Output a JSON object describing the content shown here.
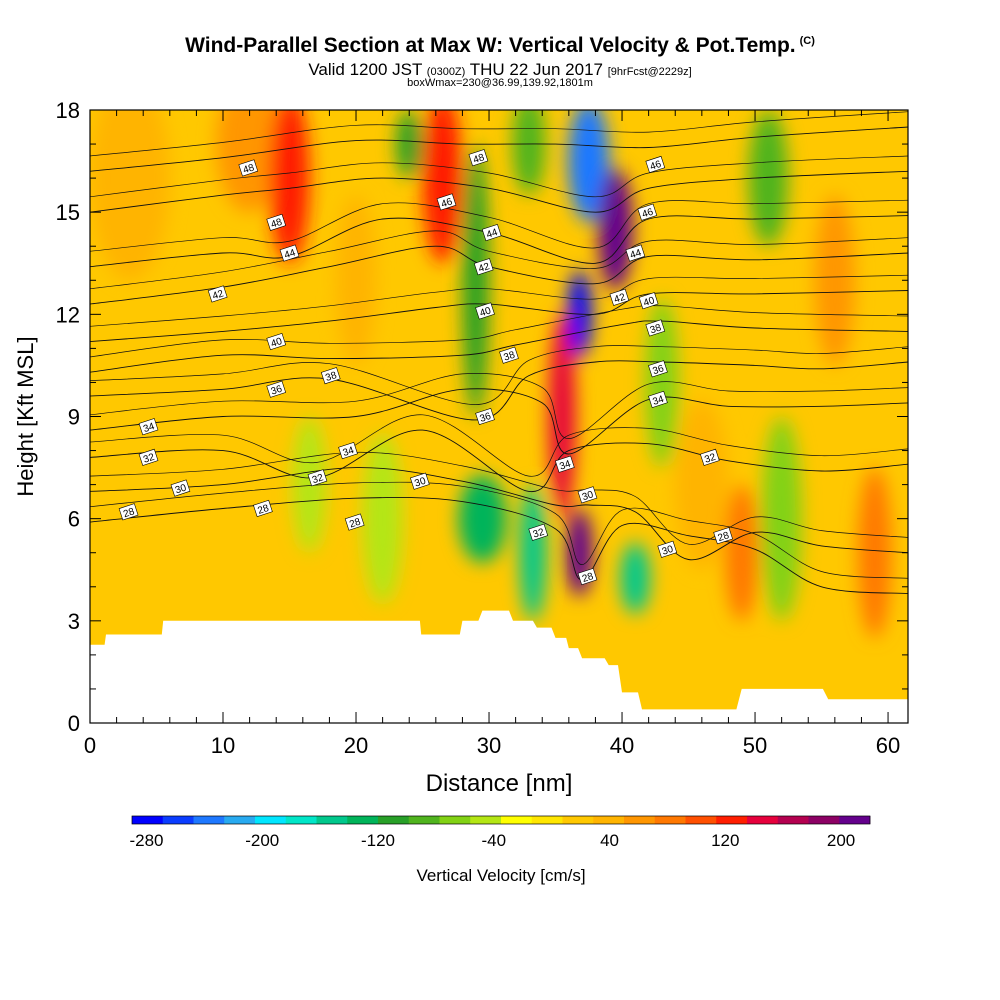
{
  "header": {
    "title": "Wind-Parallel Section at Max W: Vertical Velocity & Pot.Temp.",
    "copyright": "(C)",
    "valid_prefix": "Valid 1200 JST",
    "valid_utc": "(0300Z)",
    "valid_date": "THU 22 Jun 2017",
    "forecast_info": "[9hrFcst@2229z]",
    "box_info": "boxWmax=230@36.99,139.92,1801m"
  },
  "chart_data": {
    "type": "heatmap",
    "title": "Wind-Parallel Section at Max W: Vertical Velocity & Pot.Temp.",
    "xlabel": "Distance [nm]",
    "ylabel": "Height [Kft MSL]",
    "xlim": [
      0,
      61.5
    ],
    "ylim": [
      0,
      18
    ],
    "x_ticks": [
      0,
      10,
      20,
      30,
      40,
      50,
      60
    ],
    "y_ticks": [
      0,
      3,
      6,
      9,
      12,
      15,
      18
    ],
    "grid": false,
    "colorbar": {
      "label": "Vertical Velocity [cm/s]",
      "ticks": [
        -280,
        -200,
        -120,
        -40,
        40,
        120,
        200
      ],
      "range": [
        -290,
        220
      ],
      "colors": [
        "#0000ff",
        "#0a3cff",
        "#1e78ff",
        "#28aaf0",
        "#00e6ff",
        "#00e6c8",
        "#00c88c",
        "#00b45a",
        "#28a028",
        "#50b41e",
        "#82d214",
        "#b4e614",
        "#ffff00",
        "#ffe600",
        "#ffc800",
        "#ffb400",
        "#ff9600",
        "#ff7800",
        "#ff5000",
        "#ff1e00",
        "#e6003c",
        "#b40050",
        "#8c0064",
        "#64008c"
      ]
    },
    "vertical_velocity_cells": [
      {
        "x": 36.8,
        "top_height": 13,
        "bottom_height": 11,
        "value": -280,
        "width_nm": 1.2
      },
      {
        "x": 37.5,
        "top_height": 18,
        "bottom_height": 15,
        "value": -240,
        "width_nm": 2.5
      },
      {
        "x": 39.5,
        "top_height": 16,
        "bottom_height": 13,
        "value": 200,
        "width_nm": 2.0
      },
      {
        "x": 36.8,
        "top_height": 6,
        "bottom_height": 4,
        "value": 210,
        "width_nm": 1.4
      },
      {
        "x": 29.5,
        "top_height": 7,
        "bottom_height": 5,
        "value": -140,
        "width_nm": 3.0
      },
      {
        "x": 41.0,
        "top_height": 5,
        "bottom_height": 3.5,
        "value": -150,
        "width_nm": 1.6
      }
    ],
    "ww_features": [
      {
        "x": 3,
        "height": 16,
        "width_nm": 6,
        "height_kft": 6,
        "value": 40
      },
      {
        "x": 12,
        "height": 17,
        "width_nm": 5,
        "height_kft": 4,
        "value": 60
      },
      {
        "x": 15,
        "height": 16,
        "width_nm": 3,
        "height_kft": 5,
        "value": 120
      },
      {
        "x": 16.5,
        "height": 7,
        "width_nm": 2.5,
        "height_kft": 4,
        "value": -40
      },
      {
        "x": 20,
        "height": 13,
        "width_nm": 3,
        "height_kft": 5,
        "value": 40
      },
      {
        "x": 22,
        "height": 6,
        "width_nm": 3,
        "height_kft": 5,
        "value": -50
      },
      {
        "x": 24,
        "height": 17,
        "width_nm": 2,
        "height_kft": 2,
        "value": -100
      },
      {
        "x": 26.5,
        "height": 16,
        "width_nm": 3,
        "height_kft": 5,
        "value": 120
      },
      {
        "x": 29,
        "height": 13,
        "width_nm": 2,
        "height_kft": 8,
        "value": -100
      },
      {
        "x": 33,
        "height": 17,
        "width_nm": 2.5,
        "height_kft": 3,
        "value": -80
      },
      {
        "x": 33.3,
        "height": 5,
        "width_nm": 2,
        "height_kft": 4,
        "value": -150
      },
      {
        "x": 35.5,
        "height": 9,
        "width_nm": 2,
        "height_kft": 6,
        "value": 150
      },
      {
        "x": 43,
        "height": 10,
        "width_nm": 2.5,
        "height_kft": 5,
        "value": -60
      },
      {
        "x": 46,
        "height": 7,
        "width_nm": 4,
        "height_kft": 5,
        "value": 40
      },
      {
        "x": 49,
        "height": 5,
        "width_nm": 2.5,
        "height_kft": 4,
        "value": 90
      },
      {
        "x": 51,
        "height": 16,
        "width_nm": 3,
        "height_kft": 4,
        "value": -80
      },
      {
        "x": 52,
        "height": 6,
        "width_nm": 3,
        "height_kft": 6,
        "value": -60
      },
      {
        "x": 56,
        "height": 13,
        "width_nm": 3,
        "height_kft": 5,
        "value": 50
      },
      {
        "x": 59,
        "height": 5,
        "width_nm": 2.5,
        "height_kft": 5,
        "value": 80
      }
    ],
    "terrain_profile": {
      "x": [
        0,
        1.1,
        1.2,
        5.4,
        5.5,
        24.8,
        24.9,
        27.8,
        28,
        29.2,
        29.5,
        31.5,
        31.8,
        33.3,
        33.6,
        34.7,
        35,
        35.8,
        36,
        36.7,
        37,
        38.7,
        39,
        39.7,
        40,
        41.2,
        41.5,
        45,
        45.3,
        48.6,
        49,
        51.6,
        52,
        55.1,
        55.5,
        61.5
      ],
      "height_kft": [
        2.3,
        2.3,
        2.6,
        2.6,
        3.0,
        3.0,
        2.6,
        2.6,
        3.0,
        3.0,
        3.3,
        3.3,
        3.0,
        3.0,
        2.8,
        2.8,
        2.5,
        2.5,
        2.2,
        2.2,
        1.9,
        1.9,
        1.7,
        1.7,
        0.9,
        0.9,
        0.4,
        0.4,
        0.4,
        0.4,
        1.0,
        1.0,
        1.0,
        1.0,
        0.7,
        0.7
      ]
    },
    "potential_temperature_contours": [
      {
        "level": 28,
        "y_kft_at_x": {
          "0": 5.9,
          "10": 6.3,
          "20": 6.6,
          "28": 6.5,
          "35": 5.7,
          "37": 4.2,
          "40": 5.8,
          "45": 5.5,
          "50": 5.1,
          "55": 4.0,
          "61.5": 3.8
        }
      },
      {
        "level": 30,
        "y_kft_at_x": {
          "0": 6.8,
          "10": 7.0,
          "20": 7.5,
          "28": 7.1,
          "35": 6.4,
          "37.5": 6.4,
          "41": 6.2,
          "45": 4.8,
          "50": 5.6,
          "55": 5.2,
          "61.5": 5.0
        }
      },
      {
        "level": 32,
        "y_kft_at_x": {
          "0": 7.8,
          "10": 8.0,
          "17": 7.2,
          "25": 8.6,
          "33": 6.8,
          "36": 8.0,
          "42": 8.2,
          "48": 7.7,
          "55": 7.4,
          "61.5": 7.6
        }
      },
      {
        "level": 34,
        "y_kft_at_x": {
          "0": 8.6,
          "10": 9.0,
          "20": 9.0,
          "28": 9.8,
          "34": 9.4,
          "36": 7.9,
          "42": 9.5,
          "48": 9.3,
          "55": 9.3,
          "61.5": 9.4
        }
      },
      {
        "level": 36,
        "y_kft_at_x": {
          "0": 9.6,
          "10": 9.8,
          "18": 10.1,
          "29": 8.9,
          "33": 10.2,
          "38": 10.6,
          "43": 10.6,
          "50": 10.5,
          "55": 10.4,
          "61.5": 10.6
        }
      },
      {
        "level": 38,
        "y_kft_at_x": {
          "0": 10.3,
          "10": 10.8,
          "18": 10.7,
          "28": 10.8,
          "32": 11.1,
          "40": 11.7,
          "43": 11.8,
          "50": 11.6,
          "61.5": 11.5
        }
      },
      {
        "level": 40,
        "y_kft_at_x": {
          "0": 11.2,
          "10": 11.5,
          "18": 11.8,
          "26": 12.2,
          "30": 12.3,
          "38": 12.0,
          "42": 12.6,
          "50": 12.6,
          "61.5": 12.7
        }
      },
      {
        "level": 42,
        "y_kft_at_x": {
          "0": 12.3,
          "10": 12.8,
          "18": 13.4,
          "26": 14.0,
          "30": 13.4,
          "38": 12.9,
          "42": 13.7,
          "50": 13.6,
          "61.5": 13.8
        }
      },
      {
        "level": 44,
        "y_kft_at_x": {
          "0": 13.4,
          "10": 13.8,
          "15": 13.7,
          "22": 14.8,
          "30": 14.4,
          "38": 13.5,
          "42": 14.8,
          "50": 14.8,
          "61.5": 14.9
        }
      },
      {
        "level": 46,
        "y_kft_at_x": {
          "0": 15.0,
          "10": 15.5,
          "15": 15.7,
          "22": 16.0,
          "30": 15.7,
          "38": 15.0,
          "42": 15.7,
          "50": 16.0,
          "61.5": 16.2
        }
      },
      {
        "level": 48,
        "y_kft_at_x": {
          "0": 16.2,
          "10": 16.6,
          "20": 17.1,
          "28": 17.0,
          "35": 17.0,
          "42": 16.9,
          "50": 17.2,
          "61.5": 17.5
        }
      }
    ],
    "contour_labels": [
      {
        "text": "48",
        "x": 11.9,
        "y": 16.3
      },
      {
        "text": "48",
        "x": 14.0,
        "y": 14.7
      },
      {
        "text": "44",
        "x": 15.0,
        "y": 13.8
      },
      {
        "text": "42",
        "x": 9.6,
        "y": 12.6
      },
      {
        "text": "40",
        "x": 14.0,
        "y": 11.2
      },
      {
        "text": "38",
        "x": 18.1,
        "y": 10.2
      },
      {
        "text": "36",
        "x": 14.0,
        "y": 9.8
      },
      {
        "text": "34",
        "x": 4.4,
        "y": 8.7
      },
      {
        "text": "34",
        "x": 19.4,
        "y": 8.0
      },
      {
        "text": "32",
        "x": 4.4,
        "y": 7.8
      },
      {
        "text": "32",
        "x": 17.1,
        "y": 7.2
      },
      {
        "text": "30",
        "x": 6.8,
        "y": 6.9
      },
      {
        "text": "30",
        "x": 24.8,
        "y": 7.1
      },
      {
        "text": "28",
        "x": 2.9,
        "y": 6.2
      },
      {
        "text": "28",
        "x": 13.0,
        "y": 6.3
      },
      {
        "text": "28",
        "x": 19.9,
        "y": 5.9
      },
      {
        "text": "48",
        "x": 29.2,
        "y": 16.6
      },
      {
        "text": "46",
        "x": 26.8,
        "y": 15.3
      },
      {
        "text": "44",
        "x": 30.2,
        "y": 14.4
      },
      {
        "text": "42",
        "x": 29.6,
        "y": 13.4
      },
      {
        "text": "40",
        "x": 29.7,
        "y": 12.1
      },
      {
        "text": "38",
        "x": 31.5,
        "y": 10.8
      },
      {
        "text": "36",
        "x": 29.7,
        "y": 9.0
      },
      {
        "text": "34",
        "x": 35.7,
        "y": 7.6
      },
      {
        "text": "32",
        "x": 33.7,
        "y": 5.6
      },
      {
        "text": "30",
        "x": 37.4,
        "y": 6.7
      },
      {
        "text": "28",
        "x": 37.4,
        "y": 4.3
      },
      {
        "text": "46",
        "x": 42.5,
        "y": 16.4
      },
      {
        "text": "46",
        "x": 41.9,
        "y": 15.0
      },
      {
        "text": "44",
        "x": 41.0,
        "y": 13.8
      },
      {
        "text": "42",
        "x": 39.8,
        "y": 12.5
      },
      {
        "text": "40",
        "x": 42.0,
        "y": 12.4
      },
      {
        "text": "38",
        "x": 42.5,
        "y": 11.6
      },
      {
        "text": "36",
        "x": 42.7,
        "y": 10.4
      },
      {
        "text": "34",
        "x": 42.7,
        "y": 9.5
      },
      {
        "text": "32",
        "x": 46.6,
        "y": 7.8
      },
      {
        "text": "30",
        "x": 43.4,
        "y": 5.1
      },
      {
        "text": "28",
        "x": 47.6,
        "y": 5.5
      }
    ]
  }
}
